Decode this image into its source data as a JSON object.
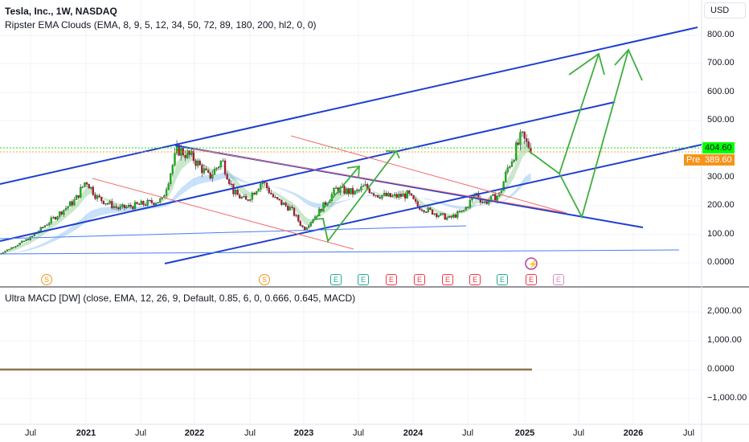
{
  "header": {
    "title": "Tesla, Inc., 1W, NASDAQ",
    "indicator": "Ripster EMA Clouds (EMA, 8, 9, 5, 12, 34, 50, 72, 89, 180, 200, hl2, 0, 0)"
  },
  "currency": "USD",
  "price_axis": [
    "800.00",
    "700.00",
    "600.00",
    "500.00",
    "300.00",
    "200.00",
    "100.00",
    "0.0000"
  ],
  "last_price": "404.60",
  "pre_label": "Pre",
  "pre_price": "389.60",
  "macd": {
    "legend": "Ultra MACD [DW] (close, EMA, 12, 26, 9, Default, 0.85, 6, 0, 0.666, 0.645, MACD)",
    "axis": [
      "2,000.00",
      "1,000.00",
      "0.0000",
      "−1,000.00"
    ]
  },
  "time_axis": [
    "Jul",
    "2021",
    "Jul",
    "2022",
    "Jul",
    "2023",
    "Jul",
    "2024",
    "Jul",
    "2025",
    "Jul",
    "2026",
    "Jul"
  ],
  "events": [
    {
      "t": "S",
      "c": "s"
    },
    {
      "t": "S",
      "c": "s"
    },
    {
      "t": "E",
      "c": "#22ab94"
    },
    {
      "t": "E",
      "c": "#22ab94"
    },
    {
      "t": "E",
      "c": "#f23645"
    },
    {
      "t": "E",
      "c": "#f23645"
    },
    {
      "t": "E",
      "c": "#f23645"
    },
    {
      "t": "E",
      "c": "#f23645"
    },
    {
      "t": "E",
      "c": "#22ab94"
    },
    {
      "t": "E",
      "c": "#f23645"
    },
    {
      "t": "E",
      "c": "#d48cc8"
    }
  ],
  "chart_data": {
    "type": "candlestick",
    "title": "Tesla, Inc., 1W, NASDAQ",
    "ylim": [
      -80,
      880
    ],
    "xlim": [
      2020.2,
      2026.7
    ],
    "waypoints": [
      [
        2020.2,
        30
      ],
      [
        2020.5,
        90
      ],
      [
        2020.65,
        140
      ],
      [
        2020.9,
        220
      ],
      [
        2021.0,
        290
      ],
      [
        2021.1,
        230
      ],
      [
        2021.3,
        190
      ],
      [
        2021.7,
        220
      ],
      [
        2021.84,
        400
      ],
      [
        2021.98,
        370
      ],
      [
        2022.13,
        300
      ],
      [
        2022.25,
        360
      ],
      [
        2022.36,
        245
      ],
      [
        2022.47,
        217
      ],
      [
        2022.62,
        288
      ],
      [
        2022.73,
        225
      ],
      [
        2022.88,
        190
      ],
      [
        2023.0,
        118
      ],
      [
        2023.13,
        175
      ],
      [
        2023.3,
        260
      ],
      [
        2023.47,
        245
      ],
      [
        2023.56,
        268
      ],
      [
        2023.67,
        240
      ],
      [
        2023.81,
        231
      ],
      [
        2023.96,
        240
      ],
      [
        2024.04,
        200
      ],
      [
        2024.2,
        175
      ],
      [
        2024.33,
        155
      ],
      [
        2024.47,
        183
      ],
      [
        2024.58,
        245
      ],
      [
        2024.65,
        210
      ],
      [
        2024.8,
        240
      ],
      [
        2024.87,
        330
      ],
      [
        2024.95,
        400
      ],
      [
        2025.0,
        443
      ],
      [
        2025.05,
        415
      ],
      [
        2025.09,
        404
      ]
    ],
    "last": 404.6,
    "premarket": 389.6
  }
}
